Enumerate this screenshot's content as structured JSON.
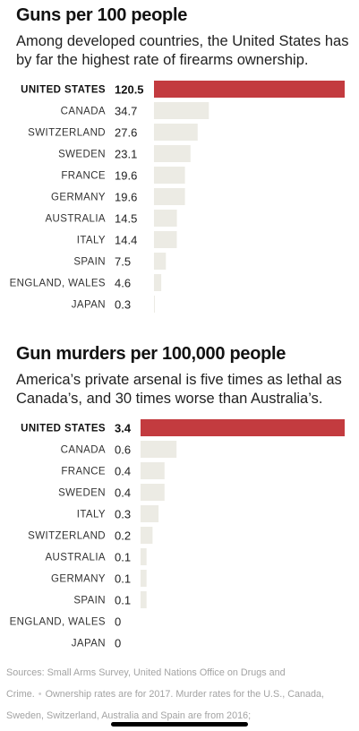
{
  "colors": {
    "highlight": "#c33b3f",
    "bar": "#ecebe4"
  },
  "chart_data": [
    {
      "type": "bar",
      "orientation": "horizontal",
      "title": "Guns per 100 people",
      "subtitle": "Among developed countries, the United States has by far the highest rate of firearms ownership.",
      "categories": [
        "UNITED STATES",
        "CANADA",
        "SWITZERLAND",
        "SWEDEN",
        "FRANCE",
        "GERMANY",
        "AUSTRALIA",
        "ITALY",
        "SPAIN",
        "ENGLAND, WALES",
        "JAPAN"
      ],
      "value_labels": [
        "120.5",
        "34.7",
        "27.6",
        "23.1",
        "19.6",
        "19.6",
        "14.5",
        "14.4",
        "7.5",
        "4.6",
        "0.3"
      ],
      "values": [
        120.5,
        34.7,
        27.6,
        23.1,
        19.6,
        19.6,
        14.5,
        14.4,
        7.5,
        4.6,
        0.3
      ],
      "highlight": "UNITED STATES",
      "xlim": [
        0,
        120.5
      ],
      "grid": false,
      "legend": "none"
    },
    {
      "type": "bar",
      "orientation": "horizontal",
      "title": "Gun murders per 100,000 people",
      "subtitle": "America’s private arsenal is five times as lethal as Canada’s, and 30 times worse than Australia’s.",
      "categories": [
        "UNITED STATES",
        "CANADA",
        "FRANCE",
        "SWEDEN",
        "ITALY",
        "SWITZERLAND",
        "AUSTRALIA",
        "GERMANY",
        "SPAIN",
        "ENGLAND, WALES",
        "JAPAN"
      ],
      "value_labels": [
        "3.4",
        "0.6",
        "0.4",
        "0.4",
        "0.3",
        "0.2",
        "0.1",
        "0.1",
        "0.1",
        "0",
        "0"
      ],
      "values": [
        3.4,
        0.6,
        0.4,
        0.4,
        0.3,
        0.2,
        0.1,
        0.1,
        0.1,
        0,
        0
      ],
      "highlight": "UNITED STATES",
      "xlim": [
        0,
        3.4
      ],
      "grid": false,
      "legend": "none"
    }
  ],
  "sources": {
    "line1": "Sources: Small Arms Survey, United Nations Office on Drugs and Crime.",
    "separator": "•",
    "line2": "Ownership rates are for 2017. Murder rates for the U.S., Canada, Sweden, Switzerland, Australia and Spain are from 2016;"
  }
}
